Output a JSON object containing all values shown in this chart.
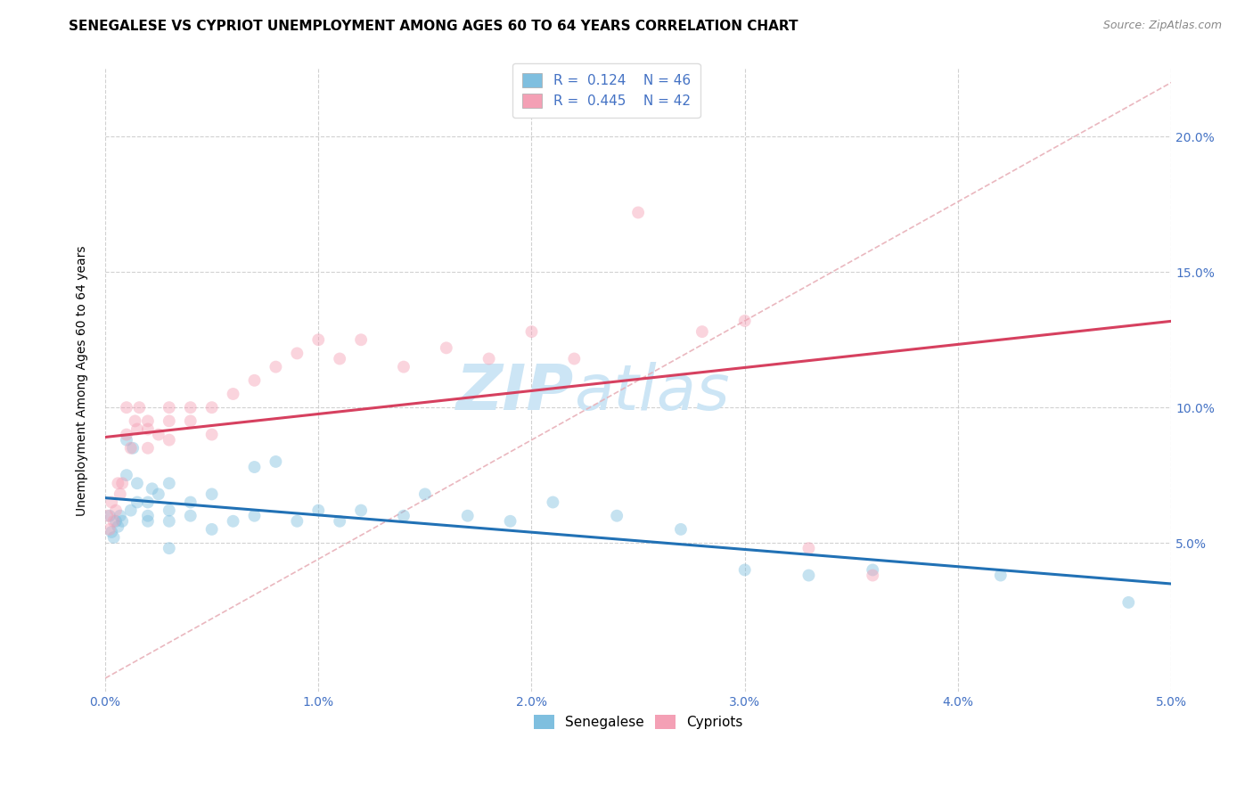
{
  "title": "SENEGALESE VS CYPRIOT UNEMPLOYMENT AMONG AGES 60 TO 64 YEARS CORRELATION CHART",
  "source": "Source: ZipAtlas.com",
  "ylabel": "Unemployment Among Ages 60 to 64 years",
  "xlim": [
    0.0,
    0.05
  ],
  "ylim": [
    -0.005,
    0.225
  ],
  "xticks": [
    0.0,
    0.01,
    0.02,
    0.03,
    0.04,
    0.05
  ],
  "yticks": [
    0.05,
    0.1,
    0.15,
    0.2
  ],
  "xticklabels": [
    "0.0%",
    "1.0%",
    "2.0%",
    "3.0%",
    "4.0%",
    "5.0%"
  ],
  "yticklabels": [
    "5.0%",
    "10.0%",
    "15.0%",
    "20.0%"
  ],
  "senegalese_label": "Senegalese",
  "cypriot_label": "Cypriots",
  "R_senegalese": "0.124",
  "N_senegalese": "46",
  "R_cypriot": "0.445",
  "N_cypriot": "42",
  "senegalese_color": "#7fbfdf",
  "cypriot_color": "#f4a0b5",
  "senegalese_line_color": "#2171b5",
  "cypriot_line_color": "#d6405f",
  "diagonal_color": "#e8b0b8",
  "background_color": "#ffffff",
  "grid_color": "#cccccc",
  "senegalese_x": [
    0.0002,
    0.0003,
    0.0004,
    0.0005,
    0.0006,
    0.0007,
    0.0008,
    0.001,
    0.001,
    0.0012,
    0.0013,
    0.0015,
    0.0015,
    0.002,
    0.002,
    0.002,
    0.0022,
    0.0025,
    0.003,
    0.003,
    0.003,
    0.003,
    0.004,
    0.004,
    0.005,
    0.005,
    0.006,
    0.007,
    0.007,
    0.008,
    0.009,
    0.01,
    0.011,
    0.012,
    0.014,
    0.015,
    0.017,
    0.019,
    0.021,
    0.024,
    0.027,
    0.03,
    0.033,
    0.036,
    0.042,
    0.048
  ],
  "senegalese_y": [
    0.06,
    0.054,
    0.052,
    0.058,
    0.056,
    0.06,
    0.058,
    0.075,
    0.088,
    0.062,
    0.085,
    0.065,
    0.072,
    0.06,
    0.058,
    0.065,
    0.07,
    0.068,
    0.072,
    0.058,
    0.048,
    0.062,
    0.06,
    0.065,
    0.068,
    0.055,
    0.058,
    0.06,
    0.078,
    0.08,
    0.058,
    0.062,
    0.058,
    0.062,
    0.06,
    0.068,
    0.06,
    0.058,
    0.065,
    0.06,
    0.055,
    0.04,
    0.038,
    0.04,
    0.038,
    0.028
  ],
  "cypriot_x": [
    0.0001,
    0.0002,
    0.0003,
    0.0004,
    0.0005,
    0.0006,
    0.0007,
    0.0008,
    0.001,
    0.001,
    0.0012,
    0.0014,
    0.0015,
    0.0016,
    0.002,
    0.002,
    0.002,
    0.0025,
    0.003,
    0.003,
    0.003,
    0.004,
    0.004,
    0.005,
    0.005,
    0.006,
    0.007,
    0.008,
    0.009,
    0.01,
    0.011,
    0.012,
    0.014,
    0.016,
    0.018,
    0.02,
    0.022,
    0.025,
    0.028,
    0.03,
    0.033,
    0.036
  ],
  "cypriot_y": [
    0.06,
    0.055,
    0.065,
    0.058,
    0.062,
    0.072,
    0.068,
    0.072,
    0.09,
    0.1,
    0.085,
    0.095,
    0.092,
    0.1,
    0.085,
    0.092,
    0.095,
    0.09,
    0.095,
    0.088,
    0.1,
    0.095,
    0.1,
    0.09,
    0.1,
    0.105,
    0.11,
    0.115,
    0.12,
    0.125,
    0.118,
    0.125,
    0.115,
    0.122,
    0.118,
    0.128,
    0.118,
    0.172,
    0.128,
    0.132,
    0.048,
    0.038
  ],
  "marker_size": 100,
  "marker_alpha": 0.45,
  "title_fontsize": 11,
  "axis_label_fontsize": 10,
  "tick_fontsize": 10,
  "legend_fontsize": 11,
  "watermark_text": "ZIPatlas",
  "watermark_color": "#cce5f5",
  "watermark_fontsize": 52
}
